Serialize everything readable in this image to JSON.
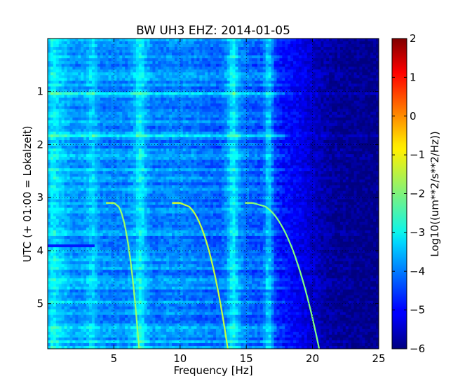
{
  "chart_data": {
    "type": "heatmap",
    "title": "BW UH3 EHZ: 2014-01-05",
    "xlabel": "Frequency [Hz]",
    "ylabel": "UTC (+ 01:00 = Lokalzeit)",
    "xlim": [
      0,
      25
    ],
    "ylim": [
      5.85,
      0
    ],
    "xticks": [
      "5",
      "10",
      "15",
      "20",
      "25"
    ],
    "yticks": [
      "1",
      "2",
      "3",
      "4",
      "5"
    ],
    "grid": true,
    "colorbar": {
      "label": "Log10((um**2/s**2/Hz))",
      "range": [
        -6,
        2
      ],
      "ticks": [
        "2",
        "1",
        "0",
        "−1",
        "−2",
        "−3",
        "−4",
        "−5",
        "−6"
      ],
      "colormap": "jet"
    },
    "background_level_by_frequency": {
      "x": [
        0,
        1,
        2,
        3,
        4,
        5,
        6,
        7,
        8,
        9,
        10,
        11,
        12,
        13,
        14,
        15,
        16,
        17,
        18,
        19,
        20,
        21,
        22,
        23,
        24,
        25
      ],
      "values": [
        -3.7,
        -3.4,
        -3.8,
        -3.7,
        -3.9,
        -3.9,
        -3.9,
        -3.4,
        -4.0,
        -3.9,
        -3.9,
        -4.0,
        -4.1,
        -4.2,
        -3.6,
        -4.1,
        -4.3,
        -4.6,
        -4.9,
        -5.1,
        -5.4,
        -5.7,
        -5.8,
        -5.85,
        -5.9,
        -5.9
      ]
    },
    "vertical_bands": [
      {
        "x": 0.4,
        "level": -3.0
      },
      {
        "x": 3.4,
        "level": -3.3
      },
      {
        "x": 7.0,
        "level": -3.0
      },
      {
        "x": 14.0,
        "level": -3.0
      },
      {
        "x": 16.7,
        "level": -3.4
      }
    ],
    "sweeps": [
      {
        "start_time": 3.1,
        "start_freq": 5.0,
        "end_freq": 6.9,
        "end_time": 5.85,
        "level": -1.8
      },
      {
        "start_time": 3.1,
        "start_freq": 10.0,
        "end_freq": 13.6,
        "end_time": 5.85,
        "level": -1.5
      },
      {
        "start_time": 3.1,
        "start_freq": 15.5,
        "end_freq": 20.5,
        "end_time": 5.85,
        "level": -2.0
      }
    ],
    "horizontal_band": {
      "time": 3.9,
      "x_from": 0,
      "x_to": 3.6,
      "level": -4.8
    }
  }
}
